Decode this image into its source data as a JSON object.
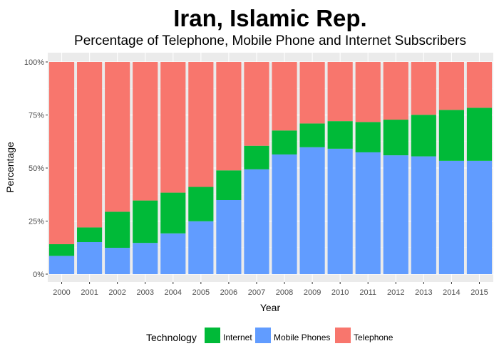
{
  "chart_data": {
    "type": "bar",
    "stacked": true,
    "title": "Iran, Islamic Rep.",
    "subtitle": "Percentage of Telephone, Mobile Phone and Internet Subscribers",
    "xlabel": "Year",
    "ylabel": "Percentage",
    "ylim": [
      0,
      100
    ],
    "y_ticks": [
      0,
      25,
      50,
      75,
      100
    ],
    "y_tick_labels": [
      "0%",
      "25%",
      "50%",
      "75%",
      "100%"
    ],
    "grid": true,
    "legend_position": "bottom",
    "legend_title": "Technology",
    "legend_entries": [
      "Internet",
      "Mobile Phones",
      "Telephone"
    ],
    "categories": [
      "2000",
      "2001",
      "2002",
      "2003",
      "2004",
      "2005",
      "2006",
      "2007",
      "2008",
      "2009",
      "2010",
      "2011",
      "2012",
      "2013",
      "2014",
      "2015"
    ],
    "series": [
      {
        "name": "Mobile Phones",
        "color": "#619CFF",
        "values": [
          8.6,
          15.1,
          12.4,
          14.7,
          19.2,
          24.9,
          34.9,
          49.4,
          56.4,
          59.8,
          59.1,
          57.4,
          56.0,
          55.5,
          53.4,
          53.4
        ]
      },
      {
        "name": "Internet",
        "color": "#00BA38",
        "values": [
          5.5,
          6.9,
          17.0,
          20.0,
          19.2,
          16.2,
          14.0,
          11.1,
          11.3,
          11.2,
          13.0,
          14.3,
          16.8,
          19.6,
          24.0,
          25.0
        ]
      },
      {
        "name": "Telephone",
        "color": "#F8766D",
        "values": [
          85.9,
          78.0,
          70.6,
          65.3,
          61.6,
          58.9,
          51.1,
          39.5,
          32.3,
          29.0,
          27.9,
          28.3,
          27.2,
          24.9,
          22.6,
          21.6
        ]
      }
    ]
  }
}
